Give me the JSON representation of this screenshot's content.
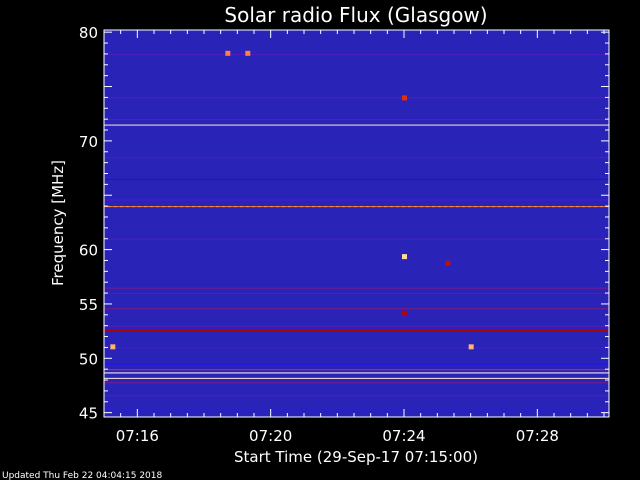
{
  "chart_data": {
    "type": "heatmap",
    "title": "Solar radio Flux (Glasgow)",
    "ylabel": "Frequency [MHz]",
    "xlabel": "Start Time (29-Sep-17 07:15:00)",
    "footer": "Updated Thu Feb 22 04:04:15 2018",
    "x_unit": "minutes after 07:15:00",
    "xlim": [
      0.0,
      15.15
    ],
    "ylim": [
      80.2,
      44.6
    ],
    "y_axis_inverted": true,
    "x_ticks": [
      {
        "value": 1.0,
        "label": "07:16"
      },
      {
        "value": 5.0,
        "label": "07:20"
      },
      {
        "value": 9.0,
        "label": "07:24"
      },
      {
        "value": 13.0,
        "label": "07:28"
      }
    ],
    "y_ticks": [
      {
        "value": 45,
        "label": "45"
      },
      {
        "value": 50,
        "label": "50"
      },
      {
        "value": 55,
        "label": "55"
      },
      {
        "value": 60,
        "label": "60"
      },
      {
        "value": 65,
        "label": ""
      },
      {
        "value": 70,
        "label": "70"
      },
      {
        "value": 75,
        "label": ""
      },
      {
        "value": 80,
        "label": "80"
      }
    ],
    "colormap": [
      "#000080",
      "#0000ff",
      "#3a20d8",
      "#6a1aa8",
      "#8e1a5a",
      "#b00000",
      "#ff5000",
      "#ffd080",
      "#ffffff"
    ],
    "background_color": "#2a23b8",
    "intensity_profile": [
      {
        "freq": 44.6,
        "freq_end": 45.3,
        "level": 0.15
      },
      {
        "freq": 45.3,
        "freq_end": 46.6,
        "level": 0.22
      },
      {
        "freq": 46.6,
        "freq_end": 47.8,
        "level": 0.3
      },
      {
        "freq": 47.8,
        "freq_end": 48.2,
        "level": 0.42
      },
      {
        "freq": 48.2,
        "freq_end": 48.7,
        "level": 0.95
      },
      {
        "freq": 48.7,
        "freq_end": 49.0,
        "level": 1.0
      },
      {
        "freq": 49.0,
        "freq_end": 49.5,
        "level": 0.7
      },
      {
        "freq": 49.5,
        "freq_end": 51.0,
        "level": 0.2
      },
      {
        "freq": 51.0,
        "freq_end": 52.6,
        "level": 0.28
      },
      {
        "freq": 52.6,
        "freq_end": 53.0,
        "level": 0.62
      },
      {
        "freq": 53.0,
        "freq_end": 53.8,
        "level": 0.35
      },
      {
        "freq": 53.8,
        "freq_end": 54.6,
        "level": 0.6
      },
      {
        "freq": 54.6,
        "freq_end": 56.0,
        "level": 0.45
      },
      {
        "freq": 56.0,
        "freq_end": 56.5,
        "level": 0.55
      },
      {
        "freq": 56.5,
        "freq_end": 61.0,
        "level": 0.42
      },
      {
        "freq": 61.0,
        "freq_end": 64.0,
        "level": 0.35
      },
      {
        "freq": 64.0,
        "freq_end": 64.6,
        "level": 0.78
      },
      {
        "freq": 64.6,
        "freq_end": 66.5,
        "level": 0.28
      },
      {
        "freq": 66.5,
        "freq_end": 68.5,
        "level": 0.18
      },
      {
        "freq": 68.5,
        "freq_end": 71.5,
        "level": 0.3
      },
      {
        "freq": 71.5,
        "freq_end": 72.0,
        "level": 0.95
      },
      {
        "freq": 72.0,
        "freq_end": 74.0,
        "level": 0.38
      },
      {
        "freq": 74.0,
        "freq_end": 78.0,
        "level": 0.32
      },
      {
        "freq": 78.0,
        "freq_end": 80.2,
        "level": 0.3
      }
    ],
    "bursts": [
      {
        "time": 0.25,
        "freq": 51.1,
        "level": 0.85
      },
      {
        "time": 11.0,
        "freq": 51.1,
        "level": 0.85
      },
      {
        "time": 9.0,
        "freq": 54.2,
        "level": 0.6
      },
      {
        "time": 9.0,
        "freq": 59.4,
        "level": 0.9
      },
      {
        "time": 9.0,
        "freq": 74.0,
        "level": 0.7
      },
      {
        "time": 3.7,
        "freq": 78.1,
        "level": 0.8
      },
      {
        "time": 4.3,
        "freq": 78.1,
        "level": 0.8
      },
      {
        "time": 10.3,
        "freq": 58.8,
        "level": 0.65
      }
    ]
  }
}
